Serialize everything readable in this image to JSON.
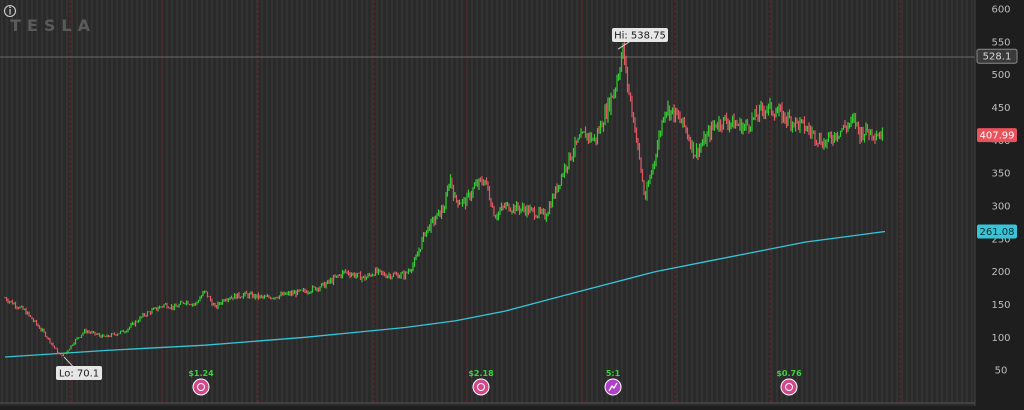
{
  "symbol": "TESLA",
  "colors": {
    "background": "#2a2a2a",
    "bar_up": "#33cc33",
    "bar_down": "#e05a66",
    "moving_average": "#36c5d8",
    "period_divider": "#7a1f26",
    "last_price_tag": "#e8525b",
    "ma_tag": "#36c5d8",
    "reference_tag": "#cfcfcf",
    "event_icon_dividend": "#d04a8a",
    "event_icon_split": "#b040c8"
  },
  "chart_data": {
    "type": "candlestick",
    "title": "",
    "ylim": [
      0,
      610
    ],
    "y_ticks": [
      50,
      100,
      150,
      200,
      250,
      300,
      350,
      400,
      450,
      500,
      550,
      600
    ],
    "grid": false,
    "price_path_key_points": [
      [
        0,
        160
      ],
      [
        20,
        140
      ],
      [
        40,
        105
      ],
      [
        55,
        72
      ],
      [
        60,
        75
      ],
      [
        70,
        95
      ],
      [
        80,
        110
      ],
      [
        100,
        100
      ],
      [
        120,
        110
      ],
      [
        140,
        135
      ],
      [
        160,
        150
      ],
      [
        170,
        145
      ],
      [
        180,
        155
      ],
      [
        190,
        150
      ],
      [
        200,
        170
      ],
      [
        210,
        145
      ],
      [
        220,
        160
      ],
      [
        240,
        165
      ],
      [
        260,
        160
      ],
      [
        280,
        165
      ],
      [
        300,
        170
      ],
      [
        320,
        180
      ],
      [
        340,
        200
      ],
      [
        360,
        190
      ],
      [
        370,
        200
      ],
      [
        380,
        195
      ],
      [
        400,
        195
      ],
      [
        410,
        215
      ],
      [
        420,
        260
      ],
      [
        430,
        280
      ],
      [
        440,
        300
      ],
      [
        445,
        345
      ],
      [
        450,
        310
      ],
      [
        460,
        305
      ],
      [
        470,
        330
      ],
      [
        480,
        340
      ],
      [
        490,
        285
      ],
      [
        500,
        300
      ],
      [
        520,
        295
      ],
      [
        540,
        285
      ],
      [
        550,
        320
      ],
      [
        560,
        360
      ],
      [
        570,
        390
      ],
      [
        580,
        410
      ],
      [
        590,
        400
      ],
      [
        600,
        440
      ],
      [
        610,
        480
      ],
      [
        618,
        538.75
      ],
      [
        622,
        490
      ],
      [
        630,
        420
      ],
      [
        640,
        310
      ],
      [
        650,
        375
      ],
      [
        660,
        450
      ],
      [
        670,
        440
      ],
      [
        680,
        420
      ],
      [
        690,
        380
      ],
      [
        700,
        400
      ],
      [
        710,
        425
      ],
      [
        720,
        430
      ],
      [
        740,
        420
      ],
      [
        760,
        450
      ],
      [
        770,
        445
      ],
      [
        780,
        435
      ],
      [
        800,
        420
      ],
      [
        820,
        395
      ],
      [
        830,
        410
      ],
      [
        840,
        420
      ],
      [
        850,
        430
      ],
      [
        855,
        410
      ],
      [
        860,
        415
      ],
      [
        870,
        412
      ],
      [
        878,
        407.99
      ]
    ],
    "moving_average_key_points": [
      [
        0,
        70
      ],
      [
        100,
        80
      ],
      [
        200,
        88
      ],
      [
        300,
        100
      ],
      [
        400,
        115
      ],
      [
        450,
        125
      ],
      [
        500,
        140
      ],
      [
        550,
        160
      ],
      [
        600,
        180
      ],
      [
        650,
        200
      ],
      [
        700,
        215
      ],
      [
        750,
        230
      ],
      [
        800,
        245
      ],
      [
        850,
        255
      ],
      [
        880,
        261.08
      ]
    ],
    "annotations": {
      "high": {
        "label": "Hi: 538.75",
        "value": 538.75
      },
      "low": {
        "label": "Lo: 70.1",
        "value": 70.1
      }
    },
    "price_tags": [
      {
        "kind": "reference",
        "label": "528.1",
        "value": 528.1
      },
      {
        "kind": "last",
        "label": "407.99",
        "value": 407.99
      },
      {
        "kind": "moving-average",
        "label": "261.08",
        "value": 261.08
      }
    ],
    "events": [
      {
        "label": "$1.24",
        "kind": "dividend"
      },
      {
        "label": "$2.18",
        "kind": "dividend"
      },
      {
        "label": "5:1",
        "kind": "split"
      },
      {
        "label": "$0.76",
        "kind": "dividend"
      }
    ]
  }
}
